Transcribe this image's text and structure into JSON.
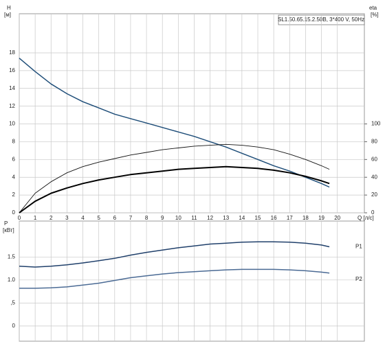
{
  "chart_data": [
    {
      "type": "line",
      "title": "SL1.50.65.15.2.50B, 3*400 V, 50Hz",
      "y_label": "H",
      "y_unit": "[м]",
      "y2_label": "eta",
      "y2_unit": "[%]",
      "x_label": "Q [л/с]",
      "x": [
        0,
        1,
        2,
        3,
        4,
        5,
        6,
        7,
        8,
        9,
        10,
        11,
        12,
        13,
        14,
        15,
        16,
        17,
        18,
        19,
        19.5
      ],
      "xlim": [
        0,
        21.7
      ],
      "xticks": [
        0,
        1,
        2,
        3,
        4,
        5,
        6,
        7,
        8,
        9,
        10,
        11,
        12,
        13,
        14,
        15,
        16,
        17,
        18,
        19,
        20
      ],
      "ylim": [
        0,
        22.4
      ],
      "yticks": [
        0,
        2,
        4,
        6,
        8,
        10,
        12,
        14,
        16,
        18
      ],
      "y2lim": [
        0,
        224
      ],
      "y2ticks": [
        0,
        20,
        40,
        60,
        80,
        100
      ],
      "grid": true,
      "series": [
        {
          "color": "#1f4e79",
          "values": [
            17.4,
            15.9,
            14.5,
            13.4,
            12.5,
            11.8,
            11.1,
            10.6,
            10.1,
            9.6,
            9.1,
            8.6,
            8.0,
            7.4,
            6.7,
            6.0,
            5.3,
            4.7,
            4.0,
            3.3,
            2.9
          ]
        },
        {
          "color": "#111111",
          "axis": "y2",
          "values": [
            0,
            22,
            35,
            45,
            52,
            57,
            61,
            65,
            68,
            71,
            73,
            75,
            76,
            77,
            76,
            74,
            71,
            66,
            60,
            53,
            49
          ]
        },
        {
          "color": "#000000",
          "axis": "y2",
          "values": [
            0,
            13,
            22,
            28,
            33,
            37,
            40,
            43,
            45,
            47,
            49,
            50,
            51,
            52,
            51,
            50,
            48,
            45,
            41,
            36,
            33
          ]
        }
      ]
    },
    {
      "type": "line",
      "y_label": "P",
      "y_unit": "[кВт]",
      "x": [
        0,
        1,
        2,
        3,
        4,
        5,
        6,
        7,
        8,
        9,
        10,
        11,
        12,
        13,
        14,
        15,
        16,
        17,
        18,
        19,
        19.5
      ],
      "ylim": [
        -0.33,
        2.28
      ],
      "yticks": [
        0,
        {
          "value": 0.5,
          "label": ",5"
        },
        {
          "value": 1.0,
          "label": "1.0"
        },
        {
          "value": 1.5,
          "label": "1.5"
        }
      ],
      "grid": true,
      "series": [
        {
          "name": "P1",
          "color": "#1f3f6a",
          "values": [
            1.3,
            1.28,
            1.3,
            1.33,
            1.37,
            1.42,
            1.47,
            1.54,
            1.6,
            1.65,
            1.7,
            1.74,
            1.78,
            1.8,
            1.82,
            1.83,
            1.83,
            1.82,
            1.8,
            1.76,
            1.72
          ]
        },
        {
          "name": "P2",
          "color": "#4a6a94",
          "values": [
            0.82,
            0.82,
            0.83,
            0.85,
            0.89,
            0.93,
            0.99,
            1.05,
            1.09,
            1.13,
            1.16,
            1.18,
            1.2,
            1.22,
            1.23,
            1.23,
            1.23,
            1.22,
            1.2,
            1.17,
            1.15
          ]
        }
      ]
    }
  ]
}
